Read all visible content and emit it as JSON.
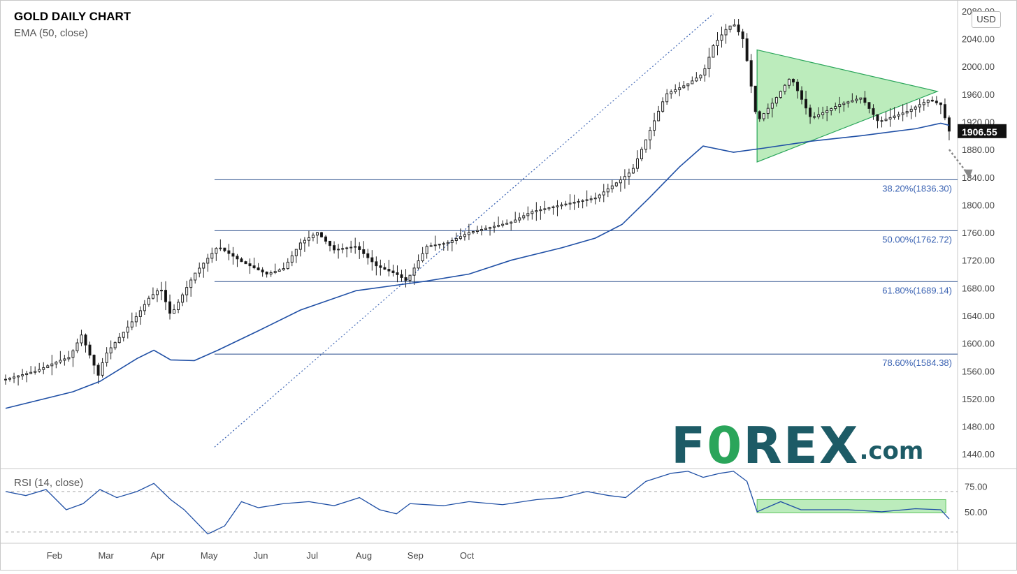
{
  "chart": {
    "title": "GOLD DAILY CHART",
    "indicator": "EMA (50, close)",
    "rsi_label": "RSI (14, close)",
    "currency": "USD",
    "logo": {
      "pre": "F",
      "zero": "0",
      "post": "REX",
      "suffix": ".com"
    }
  },
  "chart_data": [
    {
      "type": "candlestick",
      "title": "GOLD DAILY CHART",
      "ylim": [
        1420,
        2090
      ],
      "yticks": [
        1440,
        1480,
        1520,
        1560,
        1600,
        1640,
        1680,
        1720,
        1760,
        1800,
        1840,
        1880,
        1920,
        1960,
        2000,
        2040,
        2080
      ],
      "xlabels": [
        "Feb",
        "Mar",
        "Apr",
        "May",
        "Jun",
        "Jul",
        "Aug",
        "Sep",
        "Oct"
      ],
      "last_price": 1906.55,
      "price_path": [
        [
          0,
          1548
        ],
        [
          18,
          1560
        ],
        [
          32,
          1575
        ],
        [
          38,
          1580
        ],
        [
          45,
          1612
        ],
        [
          56,
          1548
        ],
        [
          58,
          1580
        ],
        [
          68,
          1610
        ],
        [
          78,
          1640
        ],
        [
          85,
          1665
        ],
        [
          92,
          1680
        ],
        [
          98,
          1640
        ],
        [
          112,
          1700
        ],
        [
          126,
          1740
        ],
        [
          140,
          1718
        ],
        [
          155,
          1700
        ],
        [
          165,
          1708
        ],
        [
          175,
          1745
        ],
        [
          185,
          1760
        ],
        [
          195,
          1735
        ],
        [
          208,
          1740
        ],
        [
          220,
          1712
        ],
        [
          232,
          1700
        ],
        [
          238,
          1690
        ],
        [
          250,
          1740
        ],
        [
          262,
          1745
        ],
        [
          275,
          1760
        ],
        [
          300,
          1775
        ],
        [
          312,
          1790
        ],
        [
          330,
          1800
        ],
        [
          350,
          1810
        ],
        [
          366,
          1838
        ],
        [
          372,
          1850
        ],
        [
          382,
          1905
        ],
        [
          392,
          1960
        ],
        [
          405,
          1975
        ],
        [
          414,
          1990
        ],
        [
          420,
          2030
        ],
        [
          428,
          2055
        ],
        [
          432,
          2062
        ],
        [
          438,
          2038
        ],
        [
          446,
          1920
        ],
        [
          456,
          1950
        ],
        [
          466,
          1985
        ],
        [
          478,
          1925
        ],
        [
          495,
          1945
        ],
        [
          508,
          1955
        ],
        [
          518,
          1920
        ],
        [
          535,
          1935
        ],
        [
          548,
          1952
        ],
        [
          555,
          1945
        ],
        [
          560,
          1906.55
        ]
      ],
      "ema50_path": [
        [
          0,
          1506
        ],
        [
          40,
          1530
        ],
        [
          56,
          1545
        ],
        [
          78,
          1578
        ],
        [
          88,
          1590
        ],
        [
          98,
          1576
        ],
        [
          112,
          1575
        ],
        [
          126,
          1590
        ],
        [
          150,
          1618
        ],
        [
          175,
          1648
        ],
        [
          208,
          1676
        ],
        [
          232,
          1684
        ],
        [
          250,
          1690
        ],
        [
          275,
          1700
        ],
        [
          300,
          1720
        ],
        [
          330,
          1738
        ],
        [
          350,
          1752
        ],
        [
          366,
          1772
        ],
        [
          382,
          1810
        ],
        [
          400,
          1855
        ],
        [
          414,
          1885
        ],
        [
          432,
          1876
        ],
        [
          450,
          1882
        ],
        [
          478,
          1892
        ],
        [
          508,
          1900
        ],
        [
          540,
          1910
        ],
        [
          555,
          1918
        ],
        [
          560,
          1915
        ]
      ],
      "levels": [
        {
          "label": "38.20%(1836.30)",
          "value": 1836.3
        },
        {
          "label": "50.00%(1762.72)",
          "value": 1762.72
        },
        {
          "label": "61.80%(1689.14)",
          "value": 1689.14
        },
        {
          "label": "78.60%(1584.38)",
          "value": 1584.38
        }
      ],
      "triangle": [
        [
          446,
          2024
        ],
        [
          553,
          1964
        ],
        [
          446,
          1862
        ]
      ]
    },
    {
      "type": "line",
      "title": "RSI (14, close)",
      "ylim": [
        23,
        92
      ],
      "yticks": [
        50.0,
        75.0
      ],
      "reference_lines": [
        70,
        30
      ],
      "rsi_path": [
        [
          0,
          70
        ],
        [
          12,
          66
        ],
        [
          24,
          72
        ],
        [
          36,
          52
        ],
        [
          46,
          58
        ],
        [
          56,
          72
        ],
        [
          66,
          64
        ],
        [
          78,
          70
        ],
        [
          88,
          78
        ],
        [
          98,
          62
        ],
        [
          106,
          52
        ],
        [
          120,
          28
        ],
        [
          130,
          36
        ],
        [
          140,
          60
        ],
        [
          150,
          54
        ],
        [
          165,
          58
        ],
        [
          180,
          60
        ],
        [
          195,
          56
        ],
        [
          210,
          64
        ],
        [
          222,
          52
        ],
        [
          232,
          48
        ],
        [
          240,
          58
        ],
        [
          260,
          56
        ],
        [
          275,
          60
        ],
        [
          295,
          57
        ],
        [
          315,
          62
        ],
        [
          330,
          64
        ],
        [
          345,
          70
        ],
        [
          358,
          66
        ],
        [
          368,
          64
        ],
        [
          380,
          80
        ],
        [
          395,
          88
        ],
        [
          405,
          90
        ],
        [
          414,
          84
        ],
        [
          424,
          88
        ],
        [
          432,
          90
        ],
        [
          440,
          80
        ],
        [
          446,
          50
        ],
        [
          460,
          60
        ],
        [
          472,
          52
        ],
        [
          500,
          52
        ],
        [
          520,
          50
        ],
        [
          540,
          53
        ],
        [
          555,
          52
        ],
        [
          560,
          43
        ]
      ],
      "highlight": {
        "x0": 446,
        "x1": 558,
        "y0": 49,
        "y1": 62
      }
    }
  ]
}
